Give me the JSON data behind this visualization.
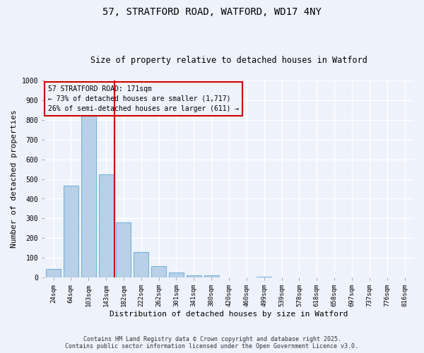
{
  "title": "57, STRATFORD ROAD, WATFORD, WD17 4NY",
  "subtitle": "Size of property relative to detached houses in Watford",
  "xlabel": "Distribution of detached houses by size in Watford",
  "ylabel": "Number of detached properties",
  "categories": [
    "24sqm",
    "64sqm",
    "103sqm",
    "143sqm",
    "182sqm",
    "222sqm",
    "262sqm",
    "301sqm",
    "341sqm",
    "380sqm",
    "420sqm",
    "460sqm",
    "499sqm",
    "539sqm",
    "578sqm",
    "618sqm",
    "658sqm",
    "697sqm",
    "737sqm",
    "776sqm",
    "816sqm"
  ],
  "values": [
    45,
    465,
    820,
    525,
    280,
    128,
    58,
    25,
    10,
    12,
    0,
    0,
    5,
    0,
    0,
    0,
    0,
    0,
    0,
    0,
    0
  ],
  "bar_color": "#b8d0e8",
  "bar_edge_color": "#6aafd6",
  "vline_color": "#cc0000",
  "vline_x": 3.5,
  "annotation_line1": "57 STRATFORD ROAD: 171sqm",
  "annotation_line2": "← 73% of detached houses are smaller (1,717)",
  "annotation_line3": "26% of semi-detached houses are larger (611) →",
  "annotation_box_color": "#cc0000",
  "ylim": [
    0,
    1000
  ],
  "yticks": [
    0,
    100,
    200,
    300,
    400,
    500,
    600,
    700,
    800,
    900,
    1000
  ],
  "background_color": "#eef2fb",
  "grid_color": "#ffffff",
  "footer": "Contains HM Land Registry data © Crown copyright and database right 2025.\nContains public sector information licensed under the Open Government Licence v3.0."
}
